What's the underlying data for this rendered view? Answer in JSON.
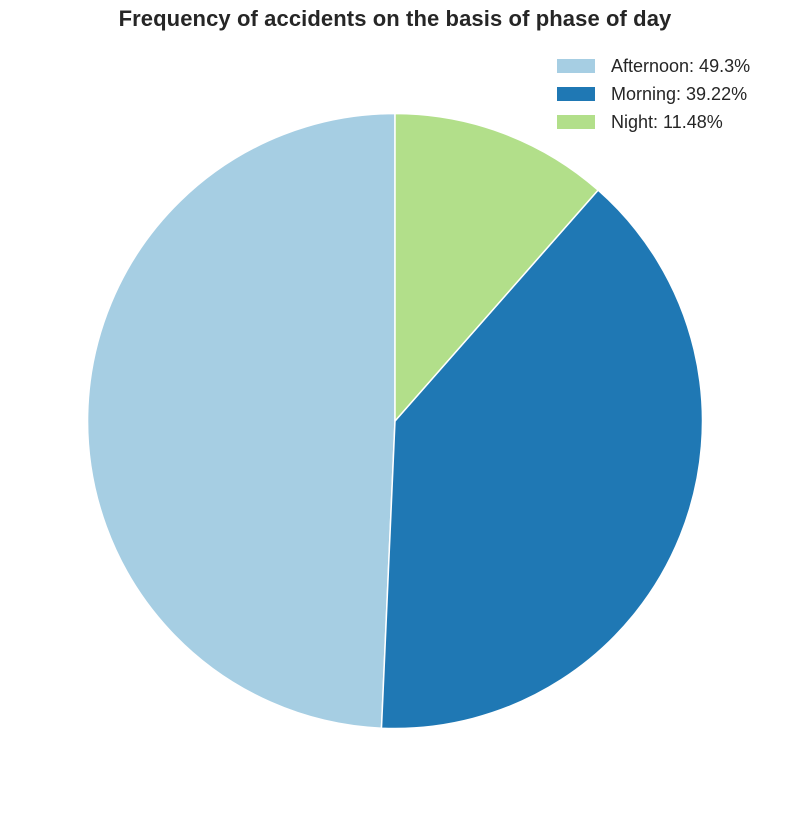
{
  "chart_data": {
    "type": "pie",
    "title": "Frequency of accidents on the basis of phase of day",
    "slices": [
      {
        "label": "Afternoon",
        "value": 49.3,
        "color": "#a6cee3",
        "legend": "Afternoon: 49.3%"
      },
      {
        "label": "Morning",
        "value": 39.22,
        "color": "#1f78b4",
        "legend": "Morning: 39.22%"
      },
      {
        "label": "Night",
        "value": 11.48,
        "color": "#b2df8a",
        "legend": "Night: 11.48%"
      }
    ],
    "start_angle_deg": 90,
    "direction": "counterclockwise",
    "legend_position": "top-right"
  }
}
